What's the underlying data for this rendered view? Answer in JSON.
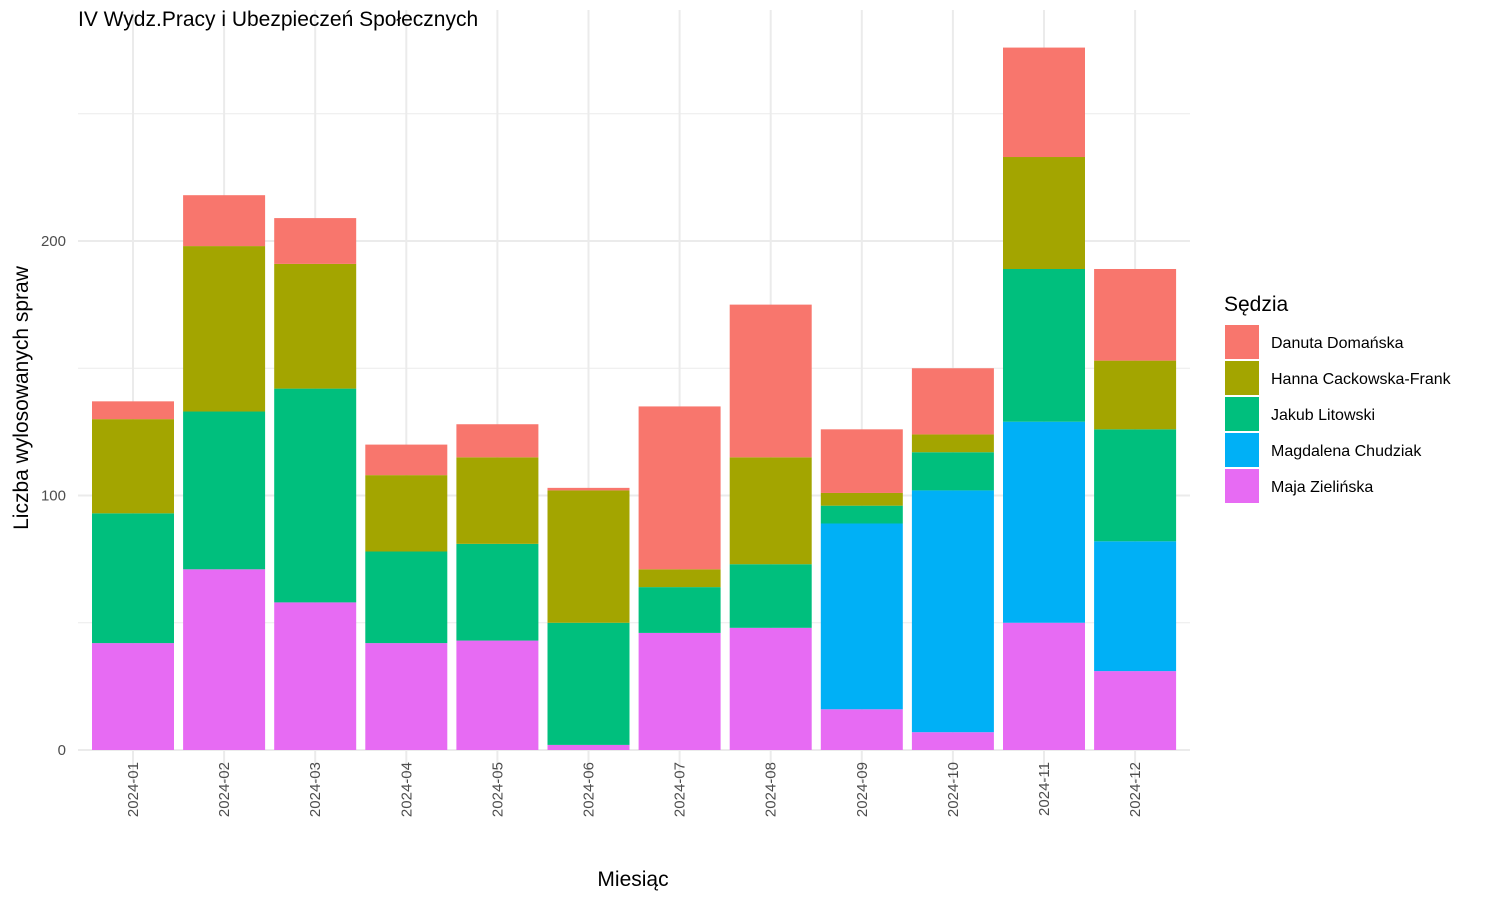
{
  "chart_data": {
    "type": "bar",
    "stacked": true,
    "title": "IV Wydz.Pracy i Ubezpieczeń Społecznych",
    "xlabel": "Miesiąc",
    "ylabel": "Liczba wylosowanych spraw",
    "ylim": [
      0,
      276
    ],
    "yticks": [
      0,
      100,
      200
    ],
    "grid": true,
    "legend": {
      "title": "Sędzia",
      "position": "right"
    },
    "categories": [
      "2024-01",
      "2024-02",
      "2024-03",
      "2024-04",
      "2024-05",
      "2024-06",
      "2024-07",
      "2024-08",
      "2024-09",
      "2024-10",
      "2024-11",
      "2024-12"
    ],
    "series": [
      {
        "name": "Maja Zielińska",
        "color": "#E76BF3",
        "values": [
          42,
          71,
          58,
          42,
          43,
          2,
          46,
          48,
          16,
          7,
          50,
          31
        ]
      },
      {
        "name": "Magdalena Chudziak",
        "color": "#00B0F6",
        "values": [
          0,
          0,
          0,
          0,
          0,
          0,
          0,
          0,
          73,
          95,
          79,
          51
        ]
      },
      {
        "name": "Jakub Litowski",
        "color": "#00BF7D",
        "values": [
          51,
          62,
          84,
          36,
          38,
          48,
          18,
          25,
          7,
          15,
          60,
          44
        ]
      },
      {
        "name": "Hanna Cackowska-Frank",
        "color": "#A3A500",
        "values": [
          37,
          65,
          49,
          30,
          34,
          52,
          7,
          42,
          5,
          7,
          44,
          27
        ]
      },
      {
        "name": "Danuta Domańska",
        "color": "#F8766D",
        "values": [
          7,
          20,
          18,
          12,
          13,
          1,
          64,
          60,
          25,
          26,
          43,
          36
        ]
      }
    ],
    "legend_order": [
      "Danuta Domańska",
      "Hanna Cackowska-Frank",
      "Jakub Litowski",
      "Magdalena Chudziak",
      "Maja Zielińska"
    ]
  }
}
